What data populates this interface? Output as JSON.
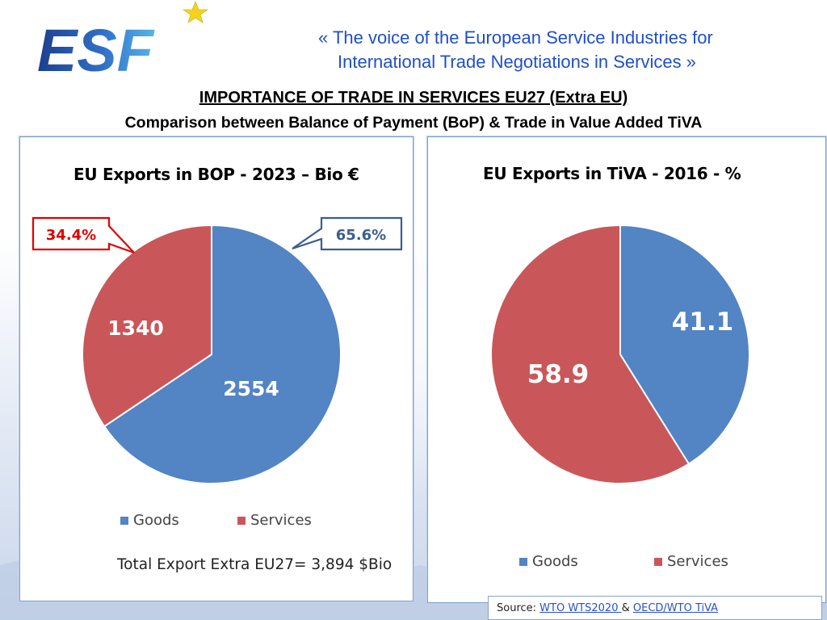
{
  "header": {
    "logo_text": "ESF",
    "tagline_line1": "«  The voice of the European Service Industries for",
    "tagline_line2": "International Trade Negotiations in Services  »",
    "title": "IMPORTANCE OF TRADE IN SERVICES EU27 (Extra EU)",
    "subtitle": "Comparison between Balance of Payment (BoP) & Trade in Value Added TiVA"
  },
  "colors": {
    "goods": "#5384c3",
    "services": "#c9575a",
    "callout_services": "#e00000",
    "callout_goods": "#3a5e8f"
  },
  "chart_data": [
    {
      "type": "pie",
      "title": "EU Exports in BOP - 2023 – Bio €",
      "categories": [
        "Goods",
        "Services"
      ],
      "values": [
        2554,
        1340
      ],
      "value_labels": [
        "2554",
        "1340"
      ],
      "share_callouts": {
        "goods": "65.6%",
        "services": "34.4%"
      },
      "legend": {
        "position": "bottom",
        "labels": [
          "Goods",
          "Services"
        ]
      },
      "note": "Total Export Extra EU27= 3,894 $Bio"
    },
    {
      "type": "pie",
      "title": "EU Exports in TiVA - 2016 - %",
      "categories": [
        "Goods",
        "Services"
      ],
      "values": [
        41.1,
        58.9
      ],
      "value_labels": [
        "41.1",
        "58.9"
      ],
      "legend": {
        "position": "bottom",
        "labels": [
          "Goods",
          "Services"
        ]
      }
    }
  ],
  "source": {
    "prefix": "Source:",
    "link1": "WTO WTS2020 ",
    "separator": "&",
    "link2": "OECD/WTO TiVA"
  }
}
